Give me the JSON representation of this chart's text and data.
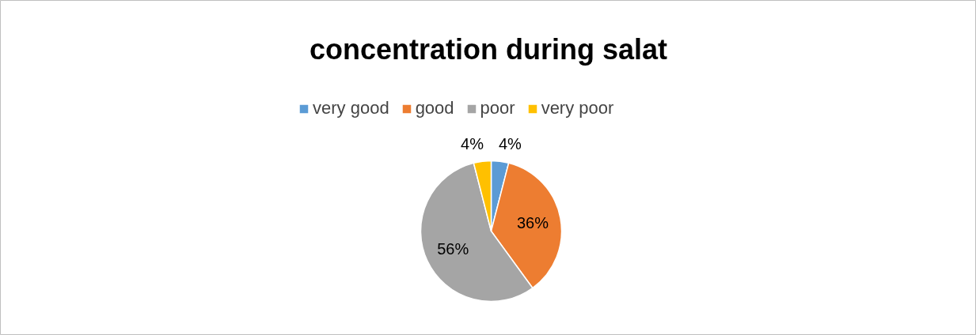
{
  "chart_data": {
    "type": "pie",
    "title": "concentration during salat",
    "categories": [
      "very good",
      "good",
      "poor",
      "very poor"
    ],
    "values": [
      4,
      36,
      56,
      4
    ],
    "colors": [
      "#5b9bd5",
      "#ed7d31",
      "#a5a5a5",
      "#ffc000"
    ],
    "value_labels": [
      "4%",
      "36%",
      "56%",
      "4%"
    ],
    "legend": "top"
  }
}
